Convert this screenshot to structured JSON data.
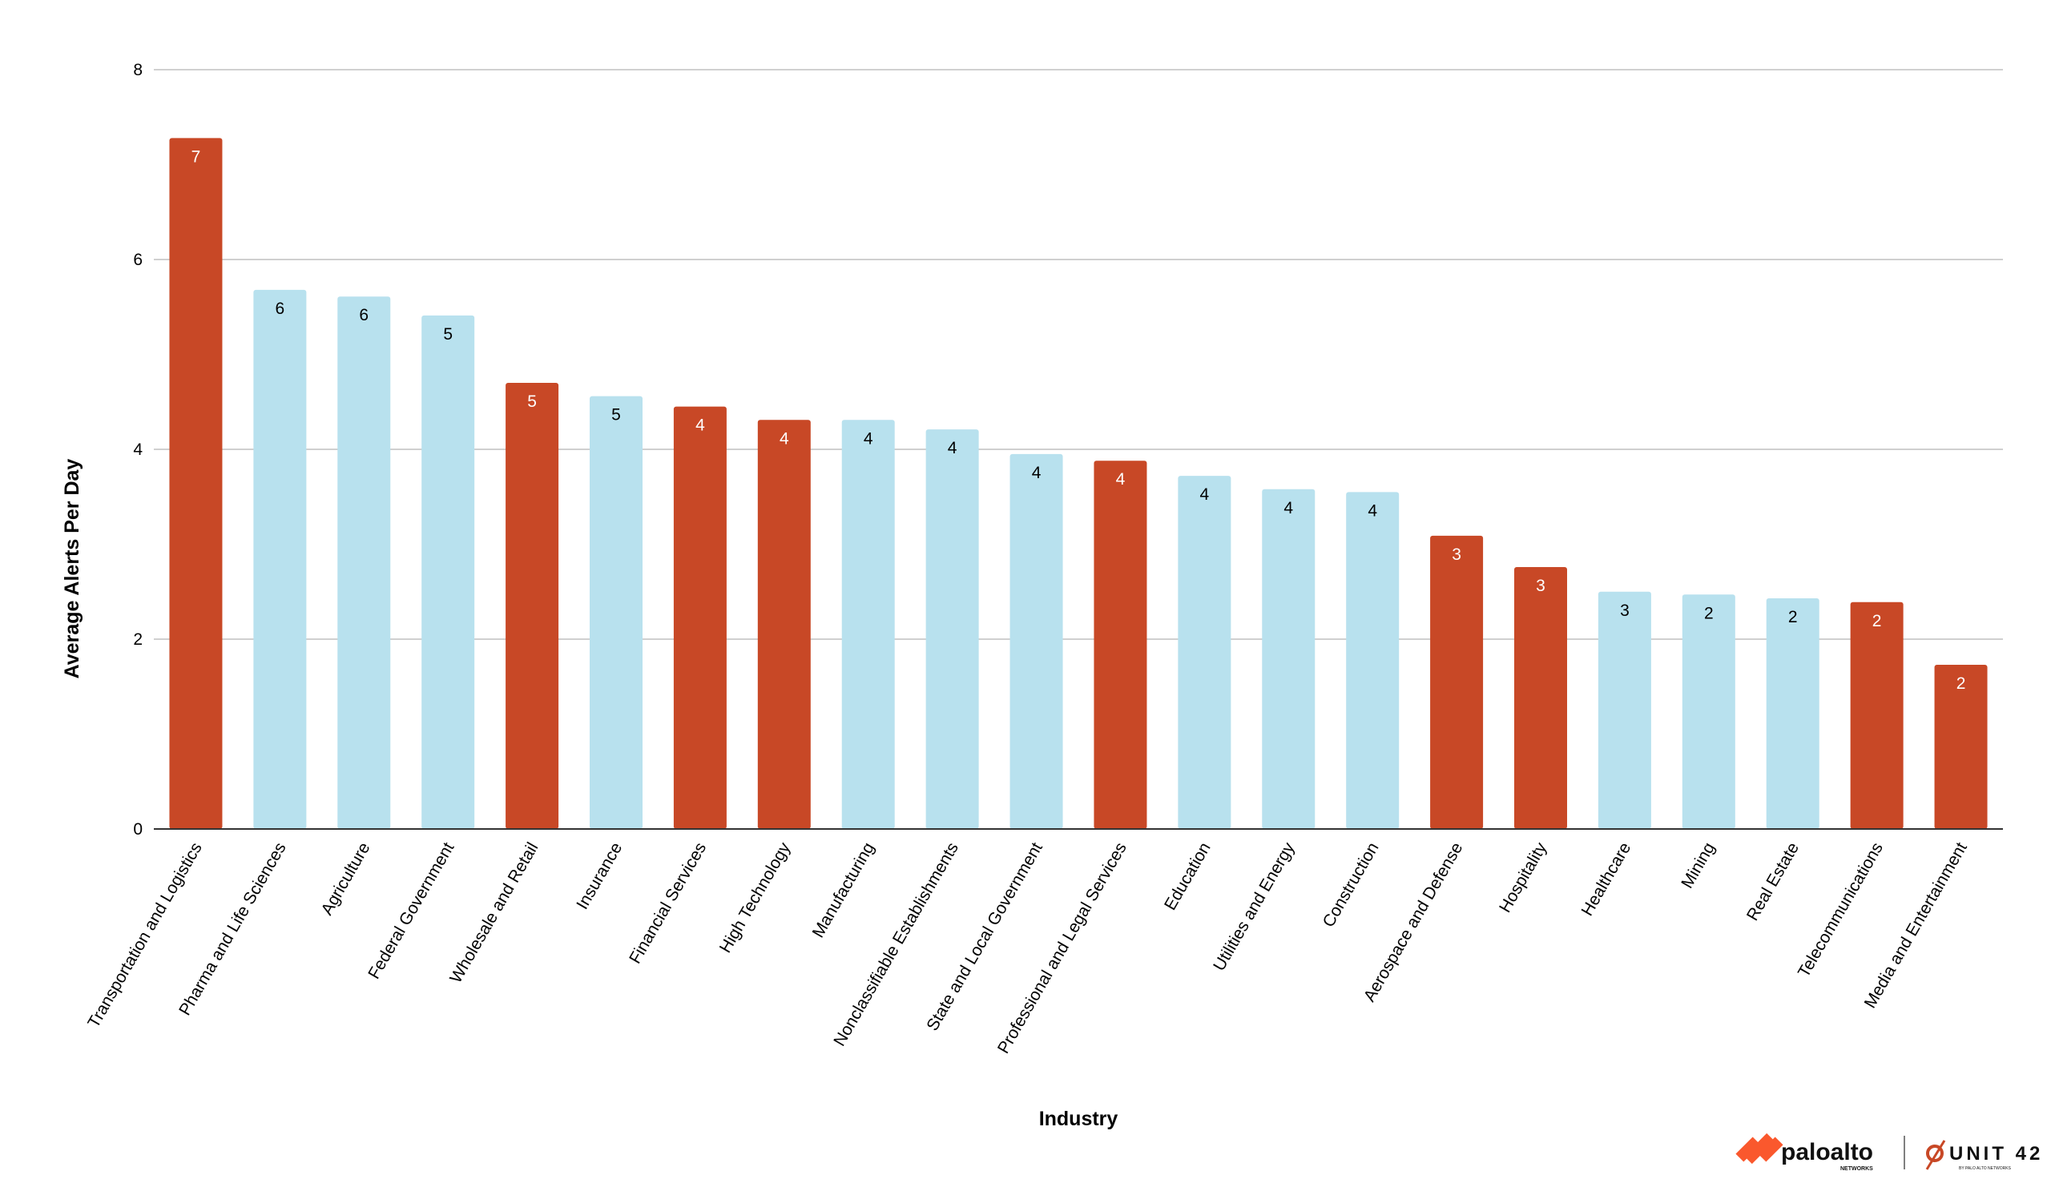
{
  "chart_data": {
    "type": "bar",
    "title": "",
    "xlabel": "Industry",
    "ylabel": "Average Alerts Per Day",
    "ylim": [
      0,
      8
    ],
    "yticks": [
      0,
      2,
      4,
      6,
      8
    ],
    "grid": true,
    "categories": [
      "Transportation and Logistics",
      "Pharma and Life Sciences",
      "Agriculture",
      "Federal Government",
      "Wholesale and Retail",
      "Insurance",
      "Financial Services",
      "High Technology",
      "Manufacturing",
      "Nonclassifiable Establishments",
      "State and Local Government",
      "Professional and Legal Services",
      "Education",
      "Utilities and Energy",
      "Construction",
      "Aerospace and Defense",
      "Hospitality",
      "Healthcare",
      "Mining",
      "Real Estate",
      "Telecommunications",
      "Media and Entertainment"
    ],
    "values": [
      7.28,
      5.68,
      5.61,
      5.41,
      4.7,
      4.56,
      4.45,
      4.31,
      4.31,
      4.21,
      3.95,
      3.88,
      3.72,
      3.58,
      3.55,
      3.09,
      2.76,
      2.5,
      2.47,
      2.43,
      2.39,
      1.73
    ],
    "data_labels": [
      "7",
      "6",
      "6",
      "5",
      "5",
      "5",
      "4",
      "4",
      "4",
      "4",
      "4",
      "4",
      "4",
      "4",
      "4",
      "3",
      "3",
      "3",
      "2",
      "2",
      "2",
      "2"
    ],
    "highlighted": [
      true,
      false,
      false,
      false,
      true,
      false,
      true,
      true,
      false,
      false,
      false,
      true,
      false,
      false,
      false,
      true,
      true,
      false,
      false,
      false,
      true,
      true
    ],
    "colors": {
      "highlight": "#C84826",
      "default": "#B8E1EE",
      "grid": "#D0D0D0",
      "axis": "#333333"
    }
  },
  "branding": {
    "logo1": "paloalto",
    "logo1_sub": "NETWORKS",
    "logo2": "UNIT 42",
    "logo2_sub": "BY PALO ALTO NETWORKS"
  }
}
